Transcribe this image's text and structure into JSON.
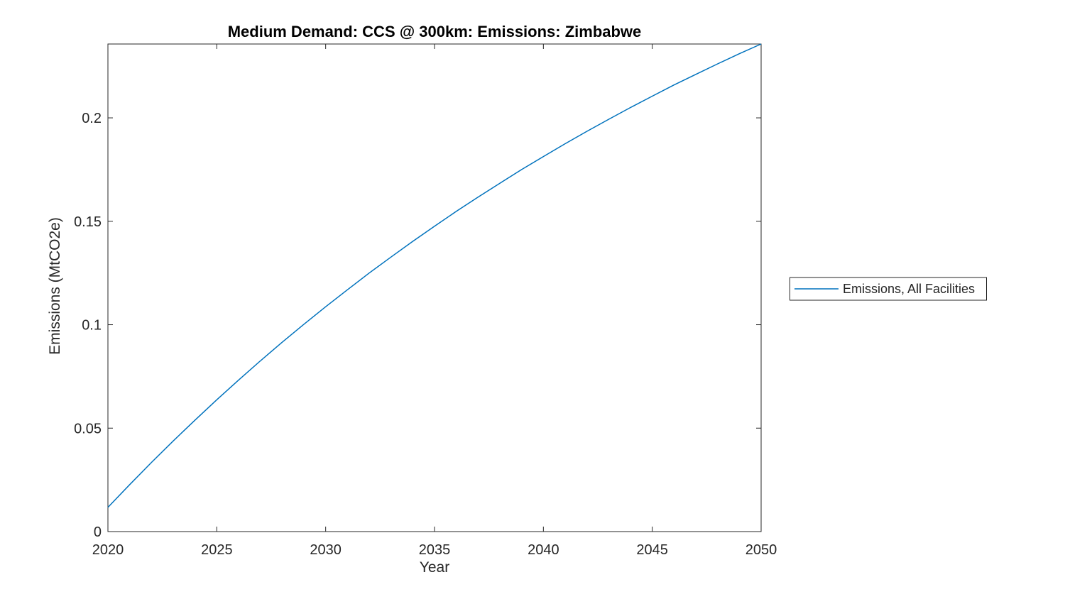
{
  "chart_data": {
    "type": "line",
    "title": "Medium Demand: CCS @ 300km: Emissions: Zimbabwe",
    "xlabel": "Year",
    "ylabel": "Emissions (MtCO2e)",
    "xlim": [
      2020,
      2050
    ],
    "ylim": [
      0,
      0.2357
    ],
    "xticks": [
      2020,
      2025,
      2030,
      2035,
      2040,
      2045,
      2050
    ],
    "xtick_labels": [
      "2020",
      "2025",
      "2030",
      "2035",
      "2040",
      "2045",
      "2050"
    ],
    "yticks": [
      0,
      0.05,
      0.1,
      0.15,
      0.2
    ],
    "ytick_labels": [
      "0",
      "0.05",
      "0.1",
      "0.15",
      "0.2"
    ],
    "grid": false,
    "legend_position": "outside-right",
    "line_color": "#0072BD",
    "axis_color": "#262626",
    "series": [
      {
        "name": "Emissions, All Facilities",
        "x": [
          2020,
          2021,
          2022,
          2023,
          2024,
          2025,
          2026,
          2027,
          2028,
          2029,
          2030,
          2031,
          2032,
          2033,
          2034,
          2035,
          2036,
          2037,
          2038,
          2039,
          2040,
          2041,
          2042,
          2043,
          2044,
          2045,
          2046,
          2047,
          2048,
          2049,
          2050
        ],
        "values": [
          0.0117,
          0.0227,
          0.0334,
          0.0438,
          0.0539,
          0.0637,
          0.0732,
          0.0825,
          0.0915,
          0.1002,
          0.1087,
          0.1169,
          0.125,
          0.1327,
          0.1403,
          0.1476,
          0.1548,
          0.1617,
          0.1684,
          0.175,
          0.1813,
          0.1875,
          0.1935,
          0.1993,
          0.205,
          0.2105,
          0.2159,
          0.221,
          0.2261,
          0.231,
          0.2357
        ]
      }
    ]
  }
}
